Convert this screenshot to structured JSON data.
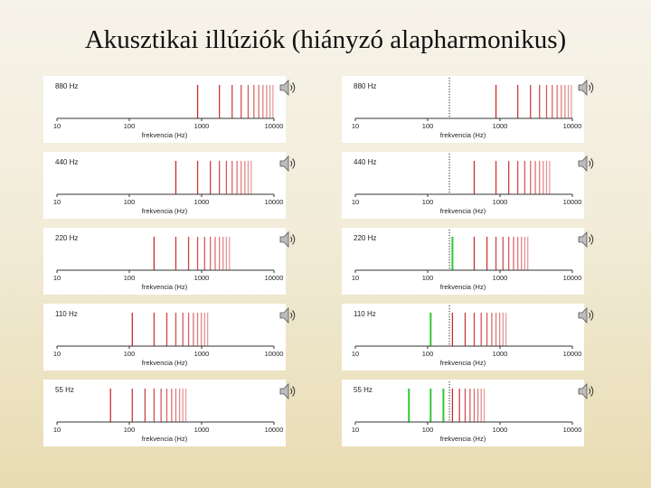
{
  "title": "Akusztikai illúziók (hiányzó alapharmonikus)",
  "icons": {
    "speaker": "speaker-sound-icon"
  },
  "colors": {
    "harmonic": "#cc2a2a",
    "missing_shifted": "#2ec92e",
    "axis": "#333333",
    "marker": "#222222"
  },
  "chart_data": [
    {
      "type": "line-spectrum",
      "column": "left",
      "panel_label": "880 Hz",
      "fundamental": 880,
      "xscale": "log",
      "xlim": [
        10,
        10000
      ],
      "xticks": [
        "10",
        "100",
        "1000",
        "10000"
      ],
      "xlabel": "frekvencia (Hz)",
      "red_harmonics": [
        880,
        1760,
        2640,
        3520,
        4400,
        5280,
        6160,
        7040,
        7920,
        8800,
        9680
      ],
      "green_lines": [],
      "dotted_marker": null
    },
    {
      "type": "line-spectrum",
      "column": "left",
      "panel_label": "440 Hz",
      "fundamental": 440,
      "xscale": "log",
      "xlim": [
        10,
        10000
      ],
      "xticks": [
        "10",
        "100",
        "1000",
        "10000"
      ],
      "xlabel": "frekvencia (Hz)",
      "red_harmonics": [
        440,
        880,
        1320,
        1760,
        2200,
        2640,
        3080,
        3520,
        3960,
        4400,
        4840
      ],
      "green_lines": [],
      "dotted_marker": null
    },
    {
      "type": "line-spectrum",
      "column": "left",
      "panel_label": "220 Hz",
      "fundamental": 220,
      "xscale": "log",
      "xlim": [
        10,
        10000
      ],
      "xticks": [
        "10",
        "100",
        "1000",
        "10000"
      ],
      "xlabel": "frekvencia (Hz)",
      "red_harmonics": [
        220,
        440,
        660,
        880,
        1100,
        1320,
        1540,
        1760,
        1980,
        2200,
        2420
      ],
      "green_lines": [],
      "dotted_marker": null
    },
    {
      "type": "line-spectrum",
      "column": "left",
      "panel_label": "110 Hz",
      "fundamental": 110,
      "xscale": "log",
      "xlim": [
        10,
        10000
      ],
      "xticks": [
        "10",
        "100",
        "1000",
        "10000"
      ],
      "xlabel": "frekvencia (Hz)",
      "red_harmonics": [
        110,
        220,
        330,
        440,
        550,
        660,
        770,
        880,
        990,
        1100,
        1210
      ],
      "green_lines": [],
      "dotted_marker": null
    },
    {
      "type": "line-spectrum",
      "column": "left",
      "panel_label": "55 Hz",
      "fundamental": 55,
      "xscale": "log",
      "xlim": [
        10,
        10000
      ],
      "xticks": [
        "10",
        "100",
        "1000",
        "10000"
      ],
      "xlabel": "frekvencia (Hz)",
      "red_harmonics": [
        55,
        110,
        165,
        220,
        275,
        330,
        385,
        440,
        495,
        550,
        605
      ],
      "green_lines": [],
      "dotted_marker": null
    },
    {
      "type": "line-spectrum",
      "column": "right",
      "panel_label": "880 Hz",
      "fundamental": 880,
      "xscale": "log",
      "xlim": [
        10,
        10000
      ],
      "xticks": [
        "10",
        "100",
        "1000",
        "10000"
      ],
      "xlabel": "frekvencia (Hz)",
      "red_harmonics": [
        880,
        1760,
        2640,
        3520,
        4400,
        5280,
        6160,
        7040,
        7920,
        8800,
        9680
      ],
      "green_lines": [],
      "dotted_marker": 200
    },
    {
      "type": "line-spectrum",
      "column": "right",
      "panel_label": "440 Hz",
      "fundamental": 440,
      "xscale": "log",
      "xlim": [
        10,
        10000
      ],
      "xticks": [
        "10",
        "100",
        "1000",
        "10000"
      ],
      "xlabel": "frekvencia (Hz)",
      "red_harmonics": [
        440,
        880,
        1320,
        1760,
        2200,
        2640,
        3080,
        3520,
        3960,
        4400,
        4840
      ],
      "green_lines": [],
      "dotted_marker": 200
    },
    {
      "type": "line-spectrum",
      "column": "right",
      "panel_label": "220 Hz",
      "fundamental": 220,
      "xscale": "log",
      "xlim": [
        10,
        10000
      ],
      "xticks": [
        "10",
        "100",
        "1000",
        "10000"
      ],
      "xlabel": "frekvencia (Hz)",
      "red_harmonics": [
        440,
        660,
        880,
        1100,
        1320,
        1540,
        1760,
        1980,
        2200,
        2420
      ],
      "green_lines": [
        220
      ],
      "dotted_marker": 200
    },
    {
      "type": "line-spectrum",
      "column": "right",
      "panel_label": "110 Hz",
      "fundamental": 110,
      "xscale": "log",
      "xlim": [
        10,
        10000
      ],
      "xticks": [
        "10",
        "100",
        "1000",
        "10000"
      ],
      "xlabel": "frekvencia (Hz)",
      "red_harmonics": [
        220,
        330,
        440,
        550,
        660,
        770,
        880,
        990,
        1100,
        1210
      ],
      "green_lines": [
        110
      ],
      "dotted_marker": 200
    },
    {
      "type": "line-spectrum",
      "column": "right",
      "panel_label": "55 Hz",
      "fundamental": 55,
      "xscale": "log",
      "xlim": [
        10,
        10000
      ],
      "xticks": [
        "10",
        "100",
        "1000",
        "10000"
      ],
      "xlabel": "frekvencia (Hz)",
      "red_harmonics": [
        220,
        275,
        330,
        385,
        440,
        495,
        550,
        605
      ],
      "green_lines": [
        55,
        110,
        165
      ],
      "dotted_marker": 200
    }
  ]
}
